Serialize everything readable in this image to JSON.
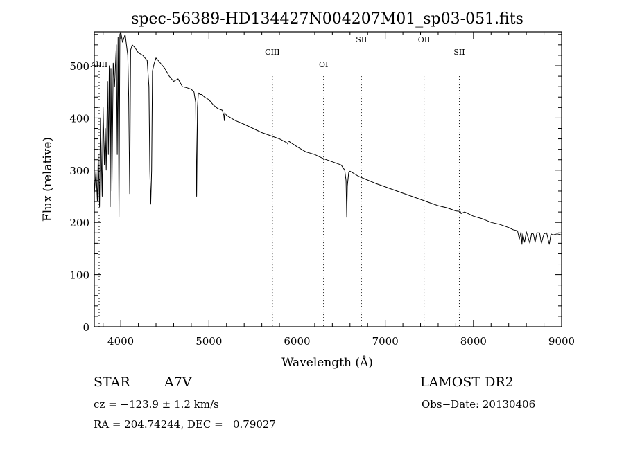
{
  "chart_data": {
    "type": "line",
    "title": "spec-56389-HD134427N004207M01_sp03-051.fits",
    "xlabel": "Wavelength (Å)",
    "ylabel": "Flux (relative)",
    "xlim": [
      3700,
      9000
    ],
    "ylim": [
      0,
      565
    ],
    "x_ticks": [
      4000,
      5000,
      6000,
      7000,
      8000,
      9000
    ],
    "y_ticks": [
      0,
      100,
      200,
      300,
      400,
      500
    ],
    "grid": false,
    "legend": "none",
    "line_color": "#000000",
    "series": [
      {
        "x": [
          3700,
          3720,
          3735,
          3745,
          3760,
          3770,
          3790,
          3800,
          3815,
          3825,
          3835,
          3850,
          3860,
          3870,
          3880,
          3889,
          3900,
          3915,
          3930,
          3950,
          3960,
          3970,
          3980,
          3990,
          4000,
          4020,
          4050,
          4080,
          4090,
          4102,
          4112,
          4130,
          4160,
          4200,
          4250,
          4300,
          4320,
          4330,
          4340,
          4350,
          4360,
          4380,
          4400,
          4450,
          4500,
          4550,
          4600,
          4650,
          4700,
          4750,
          4800,
          4830,
          4850,
          4861,
          4870,
          4880,
          4900,
          4920,
          4950,
          5000,
          5050,
          5100,
          5150,
          5170,
          5175,
          5180,
          5200,
          5250,
          5300,
          5400,
          5500,
          5600,
          5700,
          5800,
          5890,
          5895,
          5900,
          6000,
          6100,
          6200,
          6300,
          6400,
          6500,
          6540,
          6555,
          6563,
          6570,
          6585,
          6600,
          6650,
          6700,
          6800,
          6900,
          7000,
          7100,
          7200,
          7300,
          7400,
          7500,
          7600,
          7700,
          7800,
          7850,
          7860,
          7900,
          8000,
          8100,
          8200,
          8300,
          8400,
          8450,
          8500,
          8520,
          8540,
          8550,
          8560,
          8580,
          8600,
          8640,
          8660,
          8680,
          8700,
          8720,
          8750,
          8770,
          8800,
          8830,
          8860,
          8880,
          8900,
          8950,
          9000
        ],
        "y": [
          255,
          300,
          240,
          330,
          230,
          400,
          250,
          420,
          310,
          380,
          300,
          470,
          330,
          500,
          230,
          495,
          260,
          505,
          460,
          540,
          330,
          555,
          210,
          560,
          565,
          545,
          560,
          520,
          440,
          255,
          530,
          540,
          535,
          525,
          520,
          510,
          460,
          300,
          235,
          300,
          490,
          505,
          515,
          505,
          495,
          480,
          470,
          475,
          460,
          458,
          455,
          450,
          430,
          250,
          420,
          448,
          445,
          445,
          440,
          435,
          425,
          418,
          415,
          405,
          395,
          410,
          405,
          400,
          395,
          388,
          380,
          372,
          366,
          360,
          352,
          350,
          356,
          345,
          335,
          330,
          322,
          316,
          310,
          300,
          280,
          210,
          270,
          295,
          298,
          293,
          288,
          281,
          274,
          268,
          262,
          256,
          250,
          244,
          238,
          232,
          228,
          222,
          221,
          217,
          220,
          212,
          207,
          200,
          196,
          190,
          186,
          184,
          168,
          182,
          158,
          178,
          162,
          182,
          160,
          179,
          178,
          162,
          180,
          180,
          160,
          178,
          180,
          158,
          178,
          176,
          178,
          176
        ]
      }
    ],
    "line_markers": [
      {
        "label": "AlIII",
        "x": 3755
      },
      {
        "label": "CIII",
        "x": 5720
      },
      {
        "label": "OI",
        "x": 6300
      },
      {
        "label": "SII",
        "x": 6730
      },
      {
        "label": "OII",
        "x": 7440
      },
      {
        "label": "SII",
        "x": 7840
      }
    ]
  },
  "info": {
    "class_label": "STAR",
    "subclass": "A7V",
    "survey": "LAMOST DR2",
    "cz": "cz = −123.9 ± 1.2 km/s",
    "obs_date": "Obs−Date: 20130406",
    "coords": "RA = 204.74244, DEC =   0.79027"
  }
}
